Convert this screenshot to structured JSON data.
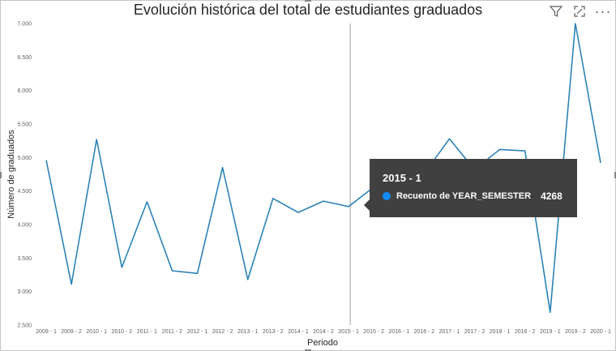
{
  "toolbar": {
    "filter_icon": "filter-icon",
    "focus_icon": "focus-mode-icon",
    "more_icon": "more-options-icon",
    "more_glyph": "···"
  },
  "tooltip": {
    "period": "2015 - 1",
    "series_label": "Recuento de YEAR_SEMESTER",
    "value": "4268",
    "color": "#118dff"
  },
  "chart_data": {
    "type": "line",
    "title": "Evolución histórica del total de estudiantes graduados",
    "xlabel": "Periodo",
    "ylabel": "Número de graduados",
    "ylim": [
      2500,
      7000
    ],
    "yticks": [
      2500,
      3000,
      3500,
      4000,
      4500,
      5000,
      5500,
      6000,
      6500,
      7000
    ],
    "ytick_labels": [
      "2.500",
      "3.000",
      "3.500",
      "4.000",
      "4.500",
      "5.000",
      "5.500",
      "6.000",
      "6.500",
      "7.000"
    ],
    "line_color": "#2b83b5",
    "gridlines": false,
    "categories": [
      "2009 - 1",
      "2009 - 2",
      "2010 - 1",
      "2010 - 2",
      "2011 - 1",
      "2011 - 2",
      "2012 - 1",
      "2012 - 2",
      "2013 - 1",
      "2013 - 2",
      "2014 - 1",
      "2014 - 2",
      "2015 - 1",
      "2015 - 2",
      "2016 - 1",
      "2016 - 2",
      "2017 - 1",
      "2017 - 2",
      "2018 - 1",
      "2018 - 2",
      "2019 - 1",
      "2019 - 2",
      "2020 - 1"
    ],
    "x_tick_labels": [
      "2009 - 1",
      "2009 - 2",
      "2010 - 1",
      "2010 - 2",
      "2011 - 1",
      "2011 - 2",
      "2012 - 1",
      "2012 - 2",
      "2013 - 1",
      "2013 - 2",
      "2014 - 1",
      "2014 - 2",
      "2015 - 1",
      "2015 - 2",
      "2016 - 1",
      "2016 - 2",
      "2017 - 1",
      "2017 - 2",
      "2018 - 1",
      "2018 - 2",
      "2019 - 1",
      "2019 - 2",
      "2020 - 1"
    ],
    "series": [
      {
        "values": [
          4960,
          3110,
          5270,
          3360,
          4340,
          3310,
          3270,
          4850,
          3180,
          4390,
          4180,
          4350,
          4268,
          4560,
          4600,
          4760,
          5280,
          4820,
          5120,
          5100,
          2690,
          7000,
          4920
        ]
      }
    ],
    "highlight_index": 12
  }
}
